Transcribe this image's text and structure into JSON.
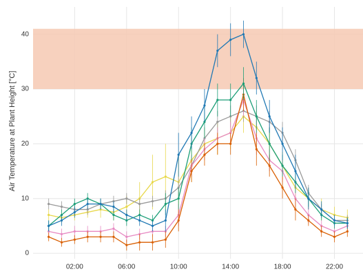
{
  "chart_data": {
    "type": "line",
    "ylabel": "Air Temperature at Plant Height [°C]",
    "x": [
      0,
      1,
      2,
      3,
      4,
      5,
      6,
      7,
      8,
      9,
      10,
      11,
      12,
      13,
      14,
      15,
      16,
      17,
      18,
      19,
      20,
      21,
      22,
      23
    ],
    "xlim": [
      -1.2,
      24.2
    ],
    "xticks": [
      {
        "value": 2,
        "label": "02:00"
      },
      {
        "value": 6,
        "label": "06:00"
      },
      {
        "value": 10,
        "label": "10:00"
      },
      {
        "value": 14,
        "label": "14:00"
      },
      {
        "value": 18,
        "label": "18:00"
      },
      {
        "value": 22,
        "label": "22:00"
      }
    ],
    "ylim": [
      -1,
      45
    ],
    "yticks": [
      0,
      10,
      20,
      30,
      40
    ],
    "grid": true,
    "band": {
      "from": 30,
      "to": 41,
      "color": "#f6c9b3"
    },
    "series": [
      {
        "color": "#e8d84a",
        "values": [
          7,
          6.5,
          7,
          7.5,
          8,
          7.5,
          8.5,
          10,
          13,
          14,
          13,
          17,
          20,
          21,
          22,
          25,
          23,
          20,
          16,
          12,
          10,
          8,
          7,
          6.5
        ],
        "errors": [
          1,
          1,
          1,
          1,
          1.5,
          1.5,
          2,
          3,
          5,
          6,
          5,
          4,
          3,
          3,
          3,
          3,
          3,
          3,
          2.5,
          2,
          2,
          2,
          1.5,
          1.5
        ]
      },
      {
        "color": "#999999",
        "values": [
          9,
          8.5,
          8,
          8,
          9,
          9.5,
          10,
          9,
          9.5,
          10,
          12,
          16,
          21,
          24,
          25,
          26,
          25,
          24,
          22,
          17,
          11,
          8,
          6,
          6
        ],
        "errors": [
          1,
          1,
          1,
          1,
          1,
          1,
          1,
          1,
          1,
          1.5,
          2,
          2,
          2,
          2,
          2,
          2,
          2,
          2,
          2,
          2,
          1.5,
          1,
          1,
          1
        ]
      },
      {
        "color": "#e78ac3",
        "values": [
          4,
          3.5,
          4,
          4,
          4,
          4.5,
          3,
          3.5,
          4,
          4,
          7,
          16,
          19,
          21,
          22,
          28,
          21,
          17,
          15,
          10,
          7,
          5,
          4,
          5
        ],
        "errors": [
          1,
          1,
          1,
          1,
          1,
          1,
          1,
          1,
          1,
          1,
          2,
          2,
          2,
          2,
          2,
          3,
          3,
          2,
          2,
          2,
          1.5,
          1,
          1,
          1
        ]
      },
      {
        "color": "#d95f02",
        "values": [
          3,
          2,
          2.5,
          3,
          3,
          3,
          1.5,
          2,
          2,
          2.5,
          6,
          15,
          18,
          20,
          20,
          29,
          19,
          16,
          12,
          8,
          6,
          4,
          3,
          4
        ],
        "errors": [
          0.8,
          0.8,
          0.8,
          1,
          1,
          1,
          1,
          1.5,
          1.5,
          1.5,
          2,
          2,
          2,
          2,
          2,
          3,
          3,
          2,
          2,
          2,
          1,
          1,
          1,
          1
        ]
      },
      {
        "color": "#1b9e77",
        "values": [
          5,
          7,
          9,
          10,
          9,
          7,
          6,
          7,
          6,
          9,
          10,
          20,
          24,
          28,
          28,
          31,
          25,
          20,
          16,
          13,
          10,
          7,
          5.5,
          5.5
        ],
        "errors": [
          1,
          1,
          1,
          1,
          1,
          1,
          1,
          1,
          1,
          2,
          2,
          3,
          3,
          3,
          3,
          3,
          3,
          3,
          2,
          2,
          1.5,
          1,
          1,
          1
        ]
      },
      {
        "color": "#1f78b4",
        "values": [
          5,
          6,
          7.5,
          9,
          9,
          8.5,
          7,
          6,
          5,
          6,
          18,
          22,
          27,
          37,
          39,
          40,
          32,
          25,
          20,
          15,
          10,
          8,
          6,
          5.5
        ],
        "errors": [
          1,
          1,
          1,
          1,
          1,
          1,
          1,
          1,
          1,
          2,
          4,
          3,
          3,
          3,
          3,
          2.5,
          3,
          3,
          3,
          3,
          2,
          1.5,
          1,
          1
        ]
      }
    ]
  }
}
